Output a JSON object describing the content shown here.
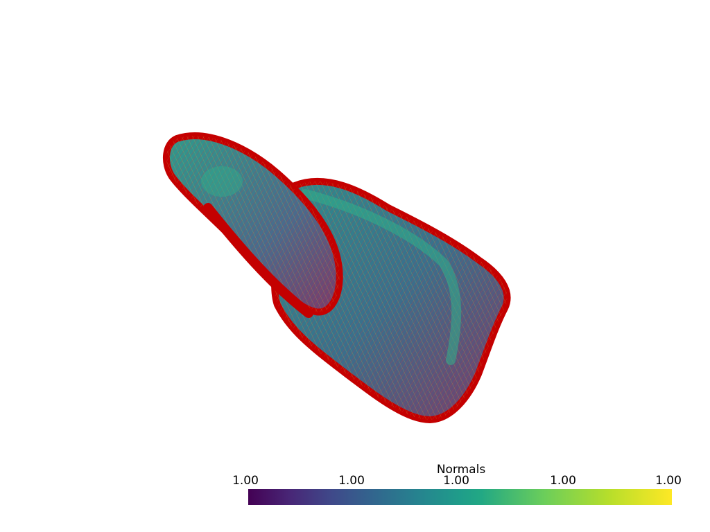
{
  "scene": {
    "background": "#ffffff",
    "glyph_color": "#cc0000",
    "object": "surface-with-normal-glyphs"
  },
  "scalar_bar": {
    "title": "Normals",
    "ticks": [
      "1.00",
      "1.00",
      "1.00",
      "1.00",
      "1.00"
    ],
    "colormap": "viridis",
    "colors": [
      "#440154",
      "#3f4a8a",
      "#26838f",
      "#1f9d8a",
      "#6cce5a",
      "#fee825"
    ]
  }
}
